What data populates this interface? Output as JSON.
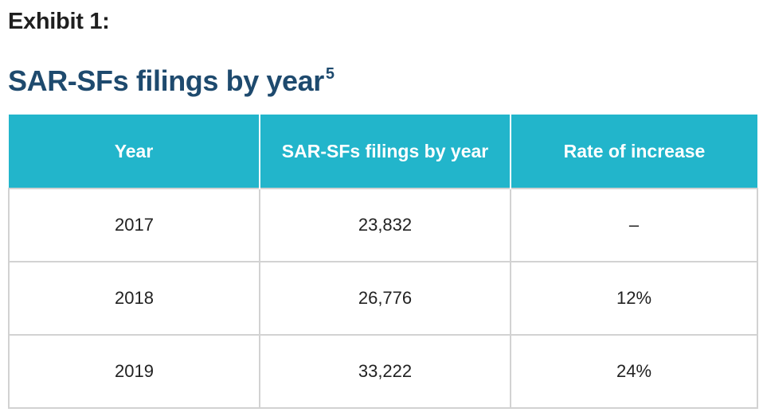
{
  "exhibit_label": "Exhibit 1:",
  "title": {
    "text": "SAR-SFs filings by year",
    "footnote_marker": "5"
  },
  "colors": {
    "title": "#1e4a6e",
    "header_background": "#22b5cb",
    "header_text": "#ffffff",
    "cell_border": "#d2d2d2"
  },
  "table": {
    "headers": [
      "Year",
      "SAR-SFs filings by year",
      "Rate of increase"
    ],
    "rows": [
      [
        "2017",
        "23,832",
        "–"
      ],
      [
        "2018",
        "26,776",
        "12%"
      ],
      [
        "2019",
        "33,222",
        "24%"
      ]
    ]
  }
}
